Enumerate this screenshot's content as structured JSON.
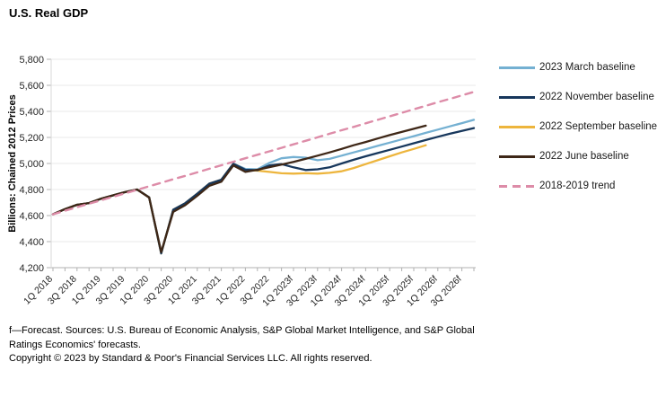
{
  "title": "U.S. Real GDP",
  "chart_data": {
    "type": "line",
    "title": "U.S. Real GDP",
    "xlabel": "",
    "ylabel": "Billions: Chained 2012 Prices",
    "ylim": [
      4200,
      5800
    ],
    "y_ticks": [
      4200,
      4400,
      4600,
      4800,
      5000,
      5200,
      5400,
      5600,
      5800
    ],
    "grid": "horizontal",
    "legend_position": "right",
    "x_tick_labels": [
      "1Q 2018",
      "3Q 2018",
      "1Q 2019",
      "3Q 2019",
      "1Q 2020",
      "3Q 2020",
      "1Q 2021",
      "3Q 2021",
      "1Q 2022",
      "3Q 2022",
      "1Q 2023f",
      "3Q 2023f",
      "1Q 2024f",
      "3Q 2024f",
      "1Q 2025f",
      "3Q 2025f",
      "1Q 2026f",
      "3Q 2026f"
    ],
    "x": [
      "1Q 2018",
      "2Q 2018",
      "3Q 2018",
      "4Q 2018",
      "1Q 2019",
      "2Q 2019",
      "3Q 2019",
      "4Q 2019",
      "1Q 2020",
      "2Q 2020",
      "3Q 2020",
      "4Q 2020",
      "1Q 2021",
      "2Q 2021",
      "3Q 2021",
      "4Q 2021",
      "1Q 2022",
      "2Q 2022",
      "3Q 2022",
      "4Q 2022",
      "1Q 2023",
      "2Q 2023",
      "3Q 2023",
      "4Q 2023",
      "1Q 2024",
      "2Q 2024",
      "3Q 2024",
      "4Q 2024",
      "1Q 2025",
      "2Q 2025",
      "3Q 2025",
      "4Q 2025",
      "1Q 2026",
      "2Q 2026",
      "3Q 2026",
      "4Q 2026"
    ],
    "series": [
      {
        "name": "2023 March baseline",
        "color": "#74B0D2",
        "style": "solid",
        "values": [
          4610,
          4650,
          4683,
          4696,
          4730,
          4755,
          4780,
          4800,
          4740,
          4310,
          4645,
          4695,
          4768,
          4845,
          4875,
          4998,
          4958,
          4955,
          5005,
          5040,
          5050,
          5045,
          5025,
          5035,
          5060,
          5085,
          5110,
          5135,
          5160,
          5185,
          5210,
          5235,
          5260,
          5285,
          5310,
          5335
        ]
      },
      {
        "name": "2022 November baseline",
        "color": "#17375C",
        "style": "solid",
        "values": [
          4610,
          4650,
          4683,
          4696,
          4730,
          4755,
          4780,
          4800,
          4740,
          4310,
          4645,
          4695,
          4768,
          4845,
          4875,
          4998,
          4952,
          4948,
          4985,
          4995,
          4970,
          4950,
          4955,
          4970,
          5000,
          5028,
          5055,
          5080,
          5105,
          5130,
          5155,
          5180,
          5205,
          5228,
          5250,
          5272
        ]
      },
      {
        "name": "2022 September baseline",
        "color": "#EDB53D",
        "style": "solid",
        "values": [
          4610,
          4650,
          4683,
          4696,
          4730,
          4755,
          4780,
          4800,
          4740,
          4310,
          4645,
          4695,
          4768,
          4845,
          4875,
          4998,
          4950,
          4945,
          4935,
          4925,
          4922,
          4925,
          4922,
          4928,
          4940,
          4965,
          4995,
          5025,
          5055,
          5085,
          5112,
          5140,
          null,
          null,
          null,
          null
        ]
      },
      {
        "name": "2022 June baseline",
        "color": "#3E2717",
        "style": "solid",
        "values": [
          4610,
          4650,
          4683,
          4696,
          4730,
          4755,
          4780,
          4800,
          4738,
          4320,
          4628,
          4680,
          4752,
          4828,
          4860,
          4985,
          4935,
          4952,
          4972,
          4992,
          5012,
          5035,
          5060,
          5085,
          5112,
          5140,
          5165,
          5192,
          5218,
          5242,
          5266,
          5290,
          null,
          null,
          null,
          null
        ]
      },
      {
        "name": "2018-2019 trend",
        "color": "#DD8CA8",
        "style": "dashed",
        "values": [
          4610,
          4637,
          4664,
          4691,
          4717,
          4744,
          4771,
          4798,
          4825,
          4852,
          4879,
          4905,
          4932,
          4959,
          4986,
          5013,
          5040,
          5067,
          5093,
          5120,
          5147,
          5174,
          5201,
          5228,
          5255,
          5281,
          5308,
          5335,
          5362,
          5389,
          5416,
          5443,
          5470,
          5496,
          5523,
          5550
        ]
      }
    ]
  },
  "footnotes": {
    "sources": "f—Forecast. Sources: U.S. Bureau of Economic Analysis, S&P Global Market Intelligence, and S&P Global Ratings Economics' forecasts.",
    "copyright": "Copyright © 2023 by Standard & Poor's Financial Services LLC. All rights reserved."
  }
}
